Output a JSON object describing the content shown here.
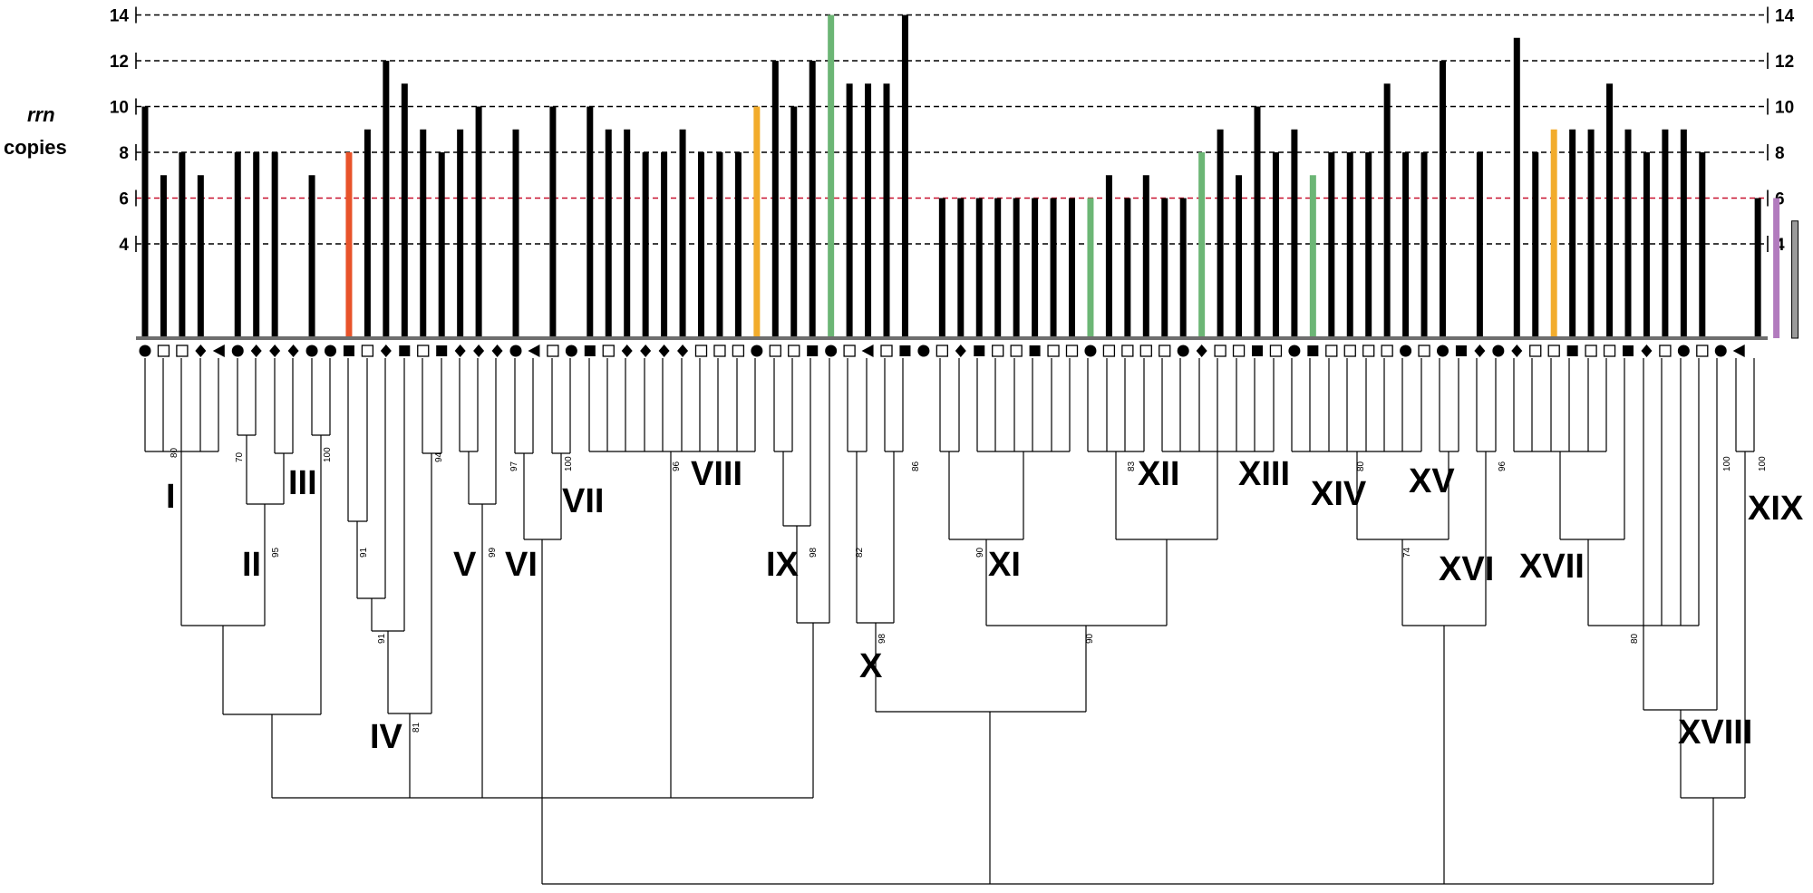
{
  "chart_data": {
    "type": "bar",
    "ylabel_italic": "rrn",
    "ylabel": "copies",
    "yticks": [
      4,
      6,
      8,
      10,
      12,
      14
    ],
    "ylim": [
      0,
      14
    ],
    "reference_line": 6,
    "values": [
      10,
      7,
      8,
      7,
      null,
      8,
      8,
      8,
      null,
      7,
      null,
      8,
      9,
      12,
      11,
      9,
      8,
      9,
      10,
      null,
      9,
      null,
      10,
      null,
      10,
      9,
      9,
      8,
      8,
      9,
      8,
      8,
      8,
      10,
      12,
      10,
      12,
      14,
      11,
      11,
      11,
      14,
      null,
      6,
      6,
      6,
      6,
      6,
      6,
      6,
      6,
      6,
      7,
      6,
      7,
      6,
      6,
      8,
      9,
      7,
      10,
      8,
      9,
      7,
      8,
      8,
      8,
      11,
      8,
      8,
      12,
      null,
      8,
      null,
      13,
      8,
      9,
      9,
      9,
      11,
      9,
      8,
      9,
      9,
      8,
      null,
      null,
      6,
      6,
      5
    ],
    "bar_colors": {
      "11": "#e8532a",
      "33": "#f2ac2c",
      "37": "#6cb675",
      "51": "#6cb675",
      "57": "#6cb675",
      "63": "#6cb675",
      "76": "#f2ac2c",
      "88": "#b27bbe",
      "89": "#9a9a9a"
    },
    "markers": [
      "circle",
      "square-open",
      "square-open",
      "diamond",
      "triangle-left",
      "circle",
      "diamond",
      "diamond",
      "diamond",
      "circle",
      "circle",
      "square-filled",
      "square-open",
      "diamond",
      "square-filled",
      "square-open",
      "square-filled",
      "diamond",
      "diamond",
      "diamond",
      "circle",
      "triangle-left",
      "square-open",
      "circle",
      "square-filled",
      "square-open",
      "diamond",
      "diamond",
      "diamond",
      "diamond",
      "square-open",
      "square-open",
      "square-open",
      "circle",
      "square-open",
      "square-open",
      "square-filled",
      "circle",
      "square-open",
      "triangle-left",
      "square-open",
      "square-filled",
      "circle",
      "square-open",
      "diamond",
      "square-filled",
      "square-open",
      "square-open",
      "square-filled",
      "square-open",
      "square-open",
      "circle",
      "square-open",
      "square-open",
      "square-open",
      "square-open",
      "circle",
      "diamond",
      "square-open",
      "square-open",
      "square-filled",
      "square-open",
      "circle",
      "square-filled",
      "square-open",
      "square-open",
      "square-open",
      "square-open",
      "circle",
      "square-open",
      "circle",
      "square-filled",
      "diamond",
      "circle",
      "diamond",
      "square-open",
      "square-open",
      "square-filled",
      "square-open",
      "square-open",
      "square-filled",
      "diamond",
      "square-open",
      "circle",
      "square-open",
      "circle",
      "triangle-left"
    ],
    "clades": [
      "I",
      "II",
      "III",
      "IV",
      "V",
      "VI",
      "VII",
      "VIII",
      "IX",
      "X",
      "XI",
      "XII",
      "XIII",
      "XIV",
      "XV",
      "XVI",
      "XVII",
      "XVIII",
      "XIX"
    ],
    "bootstrap": [
      "80",
      "70",
      "95",
      "100",
      "91",
      "91",
      "81",
      "94",
      "99",
      "97",
      "100",
      "96",
      "98",
      "82",
      "98",
      "86",
      "90",
      "90",
      "83",
      "80",
      "74",
      "96",
      "80",
      "100",
      "100"
    ]
  }
}
